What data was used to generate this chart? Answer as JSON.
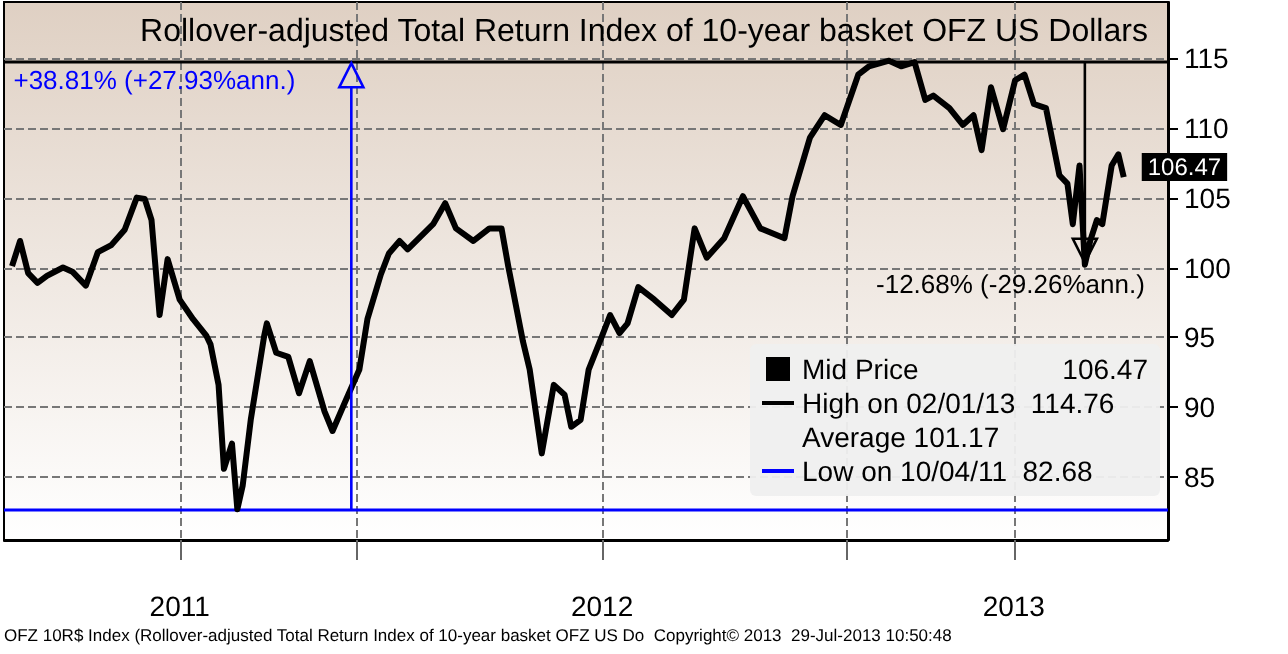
{
  "chart_data": {
    "type": "line",
    "title": "Rollover-adjusted Total Return Index of 10-year basket OFZ US Dollars",
    "x": [
      "2011-04-19",
      "2011-04-25",
      "2011-05-01",
      "2011-05-08",
      "2011-05-15",
      "2011-05-27",
      "2011-06-03",
      "2011-06-13",
      "2011-06-22",
      "2011-07-02",
      "2011-07-12",
      "2011-07-21",
      "2011-07-27",
      "2011-08-01",
      "2011-08-07",
      "2011-08-13",
      "2011-08-22",
      "2011-09-01",
      "2011-09-11",
      "2011-09-14",
      "2011-09-20",
      "2011-09-24",
      "2011-09-30",
      "2011-10-04",
      "2011-10-08",
      "2011-10-14",
      "2011-10-24",
      "2011-10-26",
      "2011-11-02",
      "2011-11-11",
      "2011-11-19",
      "2011-11-27",
      "2011-12-08",
      "2011-12-14",
      "2011-12-23",
      "2012-01-03",
      "2012-01-09",
      "2012-01-19",
      "2012-01-25",
      "2012-02-02",
      "2012-02-08",
      "2012-02-27",
      "2012-03-07",
      "2012-03-15",
      "2012-03-28",
      "2012-04-09",
      "2012-04-18",
      "2012-04-23",
      "2012-05-04",
      "2012-05-09",
      "2012-05-18",
      "2012-05-27",
      "2012-06-04",
      "2012-06-09",
      "2012-06-16",
      "2012-06-22",
      "2012-07-02",
      "2012-07-08",
      "2012-07-15",
      "2012-07-21",
      "2012-07-29",
      "2012-08-10",
      "2012-08-23",
      "2012-09-01",
      "2012-09-09",
      "2012-09-18",
      "2012-10-01",
      "2012-10-15",
      "2012-10-28",
      "2012-11-15",
      "2012-11-21",
      "2012-12-04",
      "2012-12-15",
      "2012-12-27",
      "2013-01-09",
      "2013-01-17",
      "2013-02-01",
      "2013-02-10",
      "2013-02-20",
      "2013-02-28",
      "2013-03-06",
      "2013-03-18",
      "2013-03-28",
      "2013-04-05",
      "2013-04-11",
      "2013-04-18",
      "2013-04-27",
      "2013-05-06",
      "2013-05-13",
      "2013-05-20",
      "2013-05-29",
      "2013-06-08",
      "2013-06-14",
      "2013-06-18",
      "2013-06-23",
      "2013-06-27",
      "2013-07-01",
      "2013-07-06",
      "2013-07-10",
      "2013-07-17",
      "2013-07-22",
      "2013-07-26"
    ],
    "series": [
      {
        "name": "Mid Price",
        "color": "#000000",
        "values": [
          100.1,
          101.9,
          99.6,
          98.9,
          99.4,
          100,
          99.7,
          98.7,
          101.1,
          101.6,
          102.7,
          105,
          104.9,
          103.4,
          96.6,
          100.6,
          97.7,
          96.3,
          95.1,
          94.5,
          91.6,
          85.6,
          87.4,
          82.7,
          84.4,
          89.1,
          95.1,
          96,
          93.9,
          93.6,
          91,
          93.3,
          89.7,
          88.3,
          90.3,
          92.7,
          96.3,
          99.5,
          101,
          101.9,
          101.3,
          103.1,
          104.6,
          102.8,
          101.9,
          102.8,
          102.8,
          100.1,
          94.7,
          92.7,
          86.7,
          91.6,
          90.9,
          88.6,
          89.1,
          92.7,
          95.1,
          96.6,
          95.3,
          96,
          98.6,
          97.7,
          96.6,
          97.7,
          102.8,
          100.7,
          102.1,
          105.1,
          102.8,
          102.1,
          105.1,
          109.3,
          110.9,
          110.2,
          113.8,
          114.4,
          114.8,
          114.4,
          114.7,
          112,
          112.3,
          111.4,
          110.2,
          110.9,
          108.4,
          112.9,
          109.9,
          113.4,
          113.8,
          111.7,
          111.4,
          106.6,
          106,
          103.1,
          107.3,
          100.2,
          101.9,
          103.4,
          103.1,
          107.3,
          108.1,
          106.47
        ],
        "value_labels": [
          null,
          null,
          null,
          null,
          null,
          null,
          null,
          null,
          null,
          null,
          null,
          null,
          null,
          null,
          null,
          null,
          null,
          null,
          null,
          null,
          null,
          null,
          null,
          null,
          null,
          null,
          null,
          null,
          null,
          null,
          null,
          null,
          null,
          null,
          null,
          null,
          null,
          null,
          null,
          null,
          null,
          null,
          null,
          null,
          null,
          null,
          null,
          null,
          null,
          null,
          null,
          null,
          null,
          null,
          null,
          null,
          null,
          null,
          null,
          null,
          null,
          null,
          null,
          null,
          null,
          null,
          null,
          null,
          null,
          null,
          null,
          null,
          null,
          null,
          null,
          null,
          null,
          null,
          null,
          null,
          null,
          null,
          null,
          null,
          null,
          null,
          null,
          null,
          null,
          null,
          null,
          null,
          null,
          null,
          null,
          null,
          null,
          null,
          null,
          null,
          null,
          "106.47"
        ]
      }
    ],
    "xlim": [
      "2011-04-13",
      "2013-08-28"
    ],
    "xticks": [
      {
        "value": "2011-08-22",
        "label": "2011"
      },
      {
        "value": "2012-01-01",
        "label": null
      },
      {
        "value": "2012-07-02",
        "label": "2012"
      },
      {
        "value": "2013-01-01",
        "label": null
      },
      {
        "value": "2013-05-05",
        "label": "2013"
      }
    ],
    "ylim": [
      80.5,
      119
    ],
    "yticks": [
      85,
      90,
      95,
      100,
      105,
      110,
      115
    ],
    "grid": true,
    "legend": "bottom right",
    "line_style": "solid",
    "marker": "none",
    "ref_lines": [
      {
        "axis": "y",
        "value": 114.76,
        "label": "High on 02/01/13  114.76",
        "color": "#000000"
      },
      {
        "axis": "y",
        "value": 82.68,
        "label": "Low on 10/04/11  82.68",
        "color": "#0000ff"
      }
    ],
    "annotations": [
      {
        "text": "+38.81% (+27.93%ann.)",
        "x": "2011-12-28",
        "y": 114.76
      },
      {
        "text": "-12.68% (-29.26%ann.)",
        "x": "2013-06-27",
        "y": 100.2
      },
      "Average 101.17",
      "OFZ 10R$ Index (Rollover-adjusted Total Return Index of 10-year basket OFZ US Do  Copyright© 2013  29-Jul-2013 10:50:48"
    ]
  }
}
